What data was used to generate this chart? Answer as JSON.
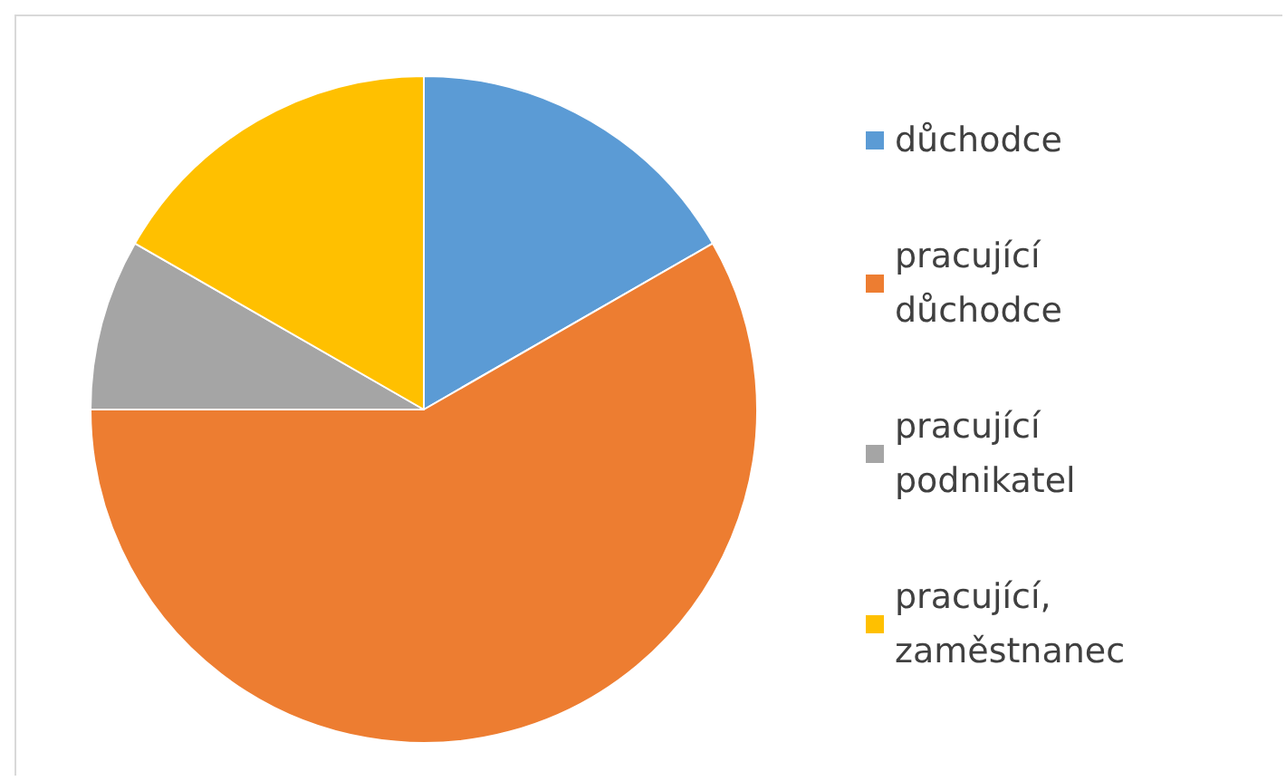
{
  "chart_data": {
    "type": "pie",
    "categories": [
      "důchodce",
      "pracující důchodce",
      "pracující podnikatel",
      "pracující, zaměstnanec"
    ],
    "values": [
      16.7,
      58.3,
      8.3,
      16.7
    ],
    "colors": [
      "#5b9bd5",
      "#ed7d31",
      "#a5a5a5",
      "#ffc000"
    ],
    "legend": "right"
  }
}
